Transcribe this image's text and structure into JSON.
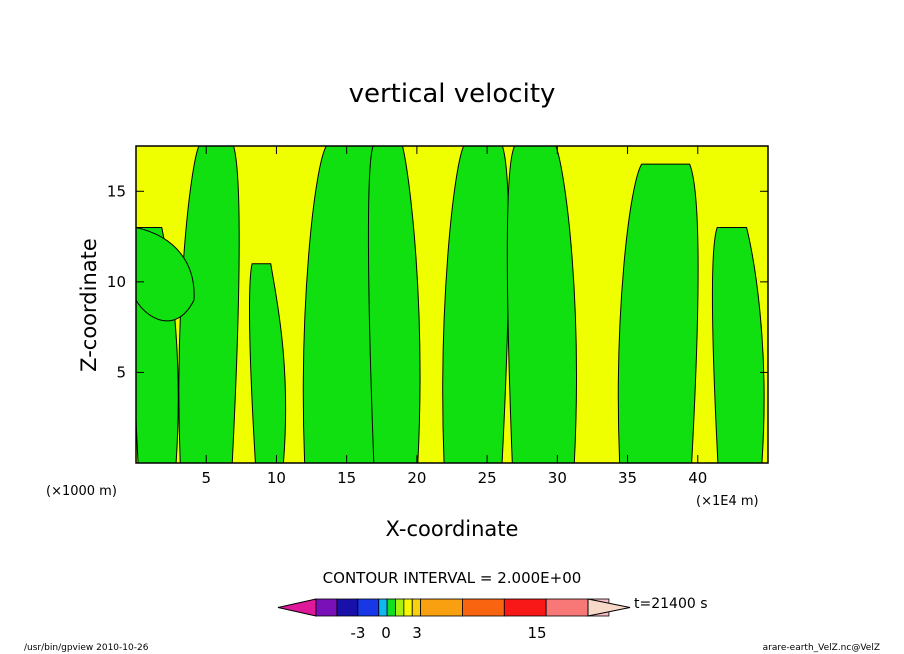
{
  "chart_data": {
    "type": "heatmap",
    "title": "vertical velocity",
    "xlabel": "X-coordinate",
    "ylabel": "Z-coordinate",
    "x_unit_left": "(×1000 m)",
    "x_unit_right": "(×1E4 m)",
    "xlim": [
      0,
      45
    ],
    "ylim": [
      0,
      17.5
    ],
    "x_ticks": [
      5,
      10,
      15,
      20,
      25,
      30,
      35,
      40
    ],
    "y_ticks": [
      5,
      10,
      15
    ],
    "contour_interval_label": "CONTOUR INTERVAL = 2.000E+00",
    "colorbar": {
      "colors": [
        "#E0199A",
        "#7A10B8",
        "#1810A8",
        "#1838E8",
        "#10B8F0",
        "#10E020",
        "#A8F010",
        "#F8F800",
        "#F8D010",
        "#F8A010",
        "#F86410",
        "#F81818",
        "#F87878",
        "#F8BCC4",
        "#F8D8C8"
      ],
      "tick_labels": [
        "-3",
        "0",
        "3",
        "15"
      ]
    },
    "time_label": "t=21400 s",
    "dominant_fields": [
      {
        "name": "positive",
        "color": "#F0FF00"
      },
      {
        "name": "negative",
        "color": "#10E010"
      }
    ],
    "green_columns": [
      {
        "x": 1.5,
        "z": 13.0
      },
      {
        "x": 5.0,
        "z": 17.5
      },
      {
        "x": 9.5,
        "z": 11.0
      },
      {
        "x": 14.5,
        "z": 17.5
      },
      {
        "x": 18.5,
        "z": 17.5
      },
      {
        "x": 24.0,
        "z": 17.5
      },
      {
        "x": 29.0,
        "z": 17.5
      },
      {
        "x": 37.0,
        "z": 16.5
      },
      {
        "x": 43.0,
        "z": 13.0
      }
    ]
  },
  "footer": {
    "left": "/usr/bin/gpview   2010-10-26",
    "right": "arare-earth_VelZ.nc@VelZ"
  }
}
